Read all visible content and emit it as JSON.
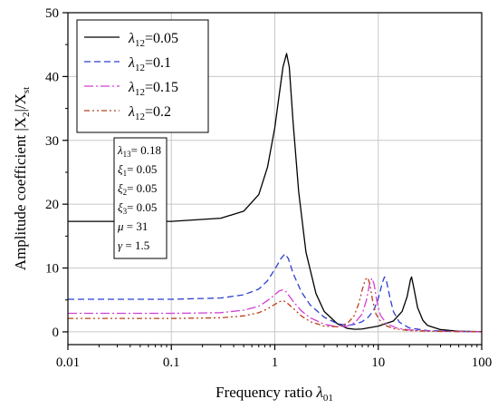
{
  "chart_data": {
    "type": "line",
    "xlabel": "Frequency ratio λ01",
    "xlabel_main": "Frequency ratio ",
    "xlabel_sym": "λ",
    "xlabel_sub": "01",
    "ylabel_main": "Amplitude coefficient |X",
    "ylabel_sub1": "2",
    "ylabel_mid": "|/X",
    "ylabel_sub2": "st",
    "x_scale": "log",
    "xlim": [
      0.01,
      100
    ],
    "ylim": [
      -2,
      50
    ],
    "grid": true,
    "x_ticks": [
      0.01,
      0.1,
      1,
      10,
      100
    ],
    "x_tick_labels": [
      "0.01",
      "0.1",
      "1",
      "10",
      "100"
    ],
    "y_ticks": [
      0,
      10,
      20,
      30,
      40,
      50
    ],
    "y_tick_labels": [
      "0",
      "10",
      "20",
      "30",
      "40",
      "50"
    ],
    "legend_position": "top-left",
    "series": [
      {
        "name": "λ12=0.05",
        "sym": "λ",
        "sub": "12",
        "val": "=0.05",
        "color": "#000000",
        "dash": "",
        "points": [
          [
            0.01,
            17.3
          ],
          [
            0.1,
            17.3
          ],
          [
            0.3,
            17.8
          ],
          [
            0.5,
            18.9
          ],
          [
            0.7,
            21.5
          ],
          [
            0.85,
            25.8
          ],
          [
            1.0,
            32.0
          ],
          [
            1.1,
            37.0
          ],
          [
            1.2,
            41.5
          ],
          [
            1.3,
            43.6
          ],
          [
            1.38,
            41.5
          ],
          [
            1.5,
            33.0
          ],
          [
            1.7,
            22.0
          ],
          [
            2.0,
            12.5
          ],
          [
            2.5,
            6.0
          ],
          [
            3.0,
            3.2
          ],
          [
            4.0,
            1.3
          ],
          [
            5.0,
            0.55
          ],
          [
            6.0,
            0.4
          ],
          [
            7.0,
            0.45
          ],
          [
            10.0,
            0.9
          ],
          [
            14.0,
            1.7
          ],
          [
            17.0,
            3.2
          ],
          [
            19.0,
            5.5
          ],
          [
            20.5,
            8.2
          ],
          [
            21.0,
            8.6
          ],
          [
            22.0,
            7.0
          ],
          [
            24.0,
            3.8
          ],
          [
            27.0,
            1.8
          ],
          [
            30.0,
            1.0
          ],
          [
            40.0,
            0.35
          ],
          [
            60.0,
            0.1
          ],
          [
            100.0,
            0.03
          ]
        ]
      },
      {
        "name": "λ12=0.1",
        "sym": "λ",
        "sub": "12",
        "val": "=0.1",
        "color": "#2b3fd0",
        "dash": "7,4",
        "points": [
          [
            0.01,
            5.1
          ],
          [
            0.1,
            5.1
          ],
          [
            0.3,
            5.3
          ],
          [
            0.5,
            5.8
          ],
          [
            0.7,
            6.7
          ],
          [
            0.85,
            8.0
          ],
          [
            1.0,
            9.8
          ],
          [
            1.15,
            11.5
          ],
          [
            1.25,
            12.2
          ],
          [
            1.35,
            11.5
          ],
          [
            1.5,
            9.2
          ],
          [
            1.8,
            6.3
          ],
          [
            2.2,
            4.2
          ],
          [
            3.0,
            2.3
          ],
          [
            4.0,
            1.3
          ],
          [
            5.0,
            1.0
          ],
          [
            6.0,
            1.2
          ],
          [
            7.0,
            1.6
          ],
          [
            8.0,
            2.3
          ],
          [
            9.0,
            3.3
          ],
          [
            10.0,
            5.2
          ],
          [
            11.0,
            7.8
          ],
          [
            11.5,
            8.6
          ],
          [
            12.0,
            8.0
          ],
          [
            13.0,
            5.3
          ],
          [
            14.0,
            3.2
          ],
          [
            16.0,
            1.5
          ],
          [
            20.0,
            0.6
          ],
          [
            30.0,
            0.2
          ],
          [
            60.0,
            0.05
          ],
          [
            100.0,
            0.02
          ]
        ]
      },
      {
        "name": "λ12=0.15",
        "sym": "λ",
        "sub": "12",
        "val": "=0.15",
        "color": "#d23fd6",
        "dash": "10,3,2,3",
        "points": [
          [
            0.01,
            2.9
          ],
          [
            0.1,
            2.9
          ],
          [
            0.3,
            3.0
          ],
          [
            0.5,
            3.4
          ],
          [
            0.7,
            4.0
          ],
          [
            0.85,
            4.9
          ],
          [
            1.0,
            5.8
          ],
          [
            1.1,
            6.4
          ],
          [
            1.2,
            6.6
          ],
          [
            1.3,
            6.2
          ],
          [
            1.5,
            4.8
          ],
          [
            1.8,
            3.3
          ],
          [
            2.2,
            2.2
          ],
          [
            3.0,
            1.2
          ],
          [
            4.0,
            0.8
          ],
          [
            5.0,
            0.9
          ],
          [
            6.0,
            1.5
          ],
          [
            7.0,
            2.8
          ],
          [
            7.7,
            5.0
          ],
          [
            8.3,
            7.8
          ],
          [
            8.7,
            8.4
          ],
          [
            9.1,
            7.5
          ],
          [
            9.7,
            4.8
          ],
          [
            10.5,
            2.6
          ],
          [
            12.0,
            1.3
          ],
          [
            15.0,
            0.6
          ],
          [
            20.0,
            0.3
          ],
          [
            30.0,
            0.15
          ],
          [
            60.0,
            0.05
          ],
          [
            100.0,
            0.02
          ]
        ]
      },
      {
        "name": "λ12=0.2",
        "sym": "λ",
        "sub": "12",
        "val": "=0.2",
        "color": "#b8401a",
        "dash": "6,3,2,3,2,3",
        "points": [
          [
            0.01,
            2.1
          ],
          [
            0.1,
            2.1
          ],
          [
            0.3,
            2.2
          ],
          [
            0.5,
            2.5
          ],
          [
            0.7,
            3.0
          ],
          [
            0.85,
            3.6
          ],
          [
            1.0,
            4.3
          ],
          [
            1.1,
            4.7
          ],
          [
            1.2,
            4.9
          ],
          [
            1.3,
            4.6
          ],
          [
            1.5,
            3.7
          ],
          [
            1.8,
            2.5
          ],
          [
            2.2,
            1.6
          ],
          [
            3.0,
            0.9
          ],
          [
            4.0,
            0.8
          ],
          [
            5.0,
            1.3
          ],
          [
            5.8,
            2.4
          ],
          [
            6.5,
            4.5
          ],
          [
            7.0,
            6.6
          ],
          [
            7.5,
            8.2
          ],
          [
            7.9,
            8.5
          ],
          [
            8.3,
            7.5
          ],
          [
            8.8,
            5.0
          ],
          [
            9.5,
            2.8
          ],
          [
            11.0,
            1.2
          ],
          [
            14.0,
            0.5
          ],
          [
            20.0,
            0.2
          ],
          [
            30.0,
            0.1
          ],
          [
            60.0,
            0.04
          ],
          [
            100.0,
            0.02
          ]
        ]
      }
    ],
    "parameters": [
      {
        "sym": "λ",
        "sub": "13",
        "val": "= 0.18"
      },
      {
        "sym": "ξ",
        "sub": "1",
        "val": "= 0.05"
      },
      {
        "sym": "ξ",
        "sub": "2",
        "val": "= 0.05"
      },
      {
        "sym": "ξ",
        "sub": "3",
        "val": "= 0.05"
      },
      {
        "sym": "μ",
        "sub": "",
        "val": "= 31"
      },
      {
        "sym": "γ",
        "sub": "",
        "val": "= 1.5"
      }
    ]
  }
}
